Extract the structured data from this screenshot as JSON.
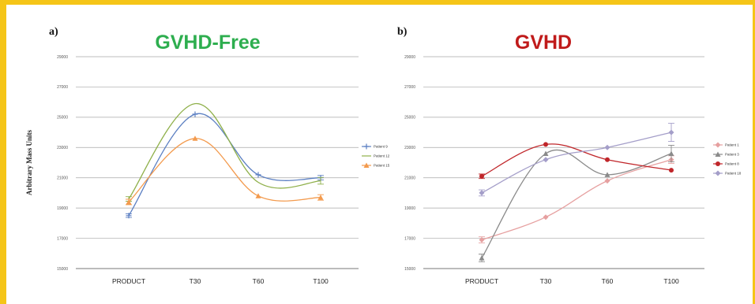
{
  "chart_data": [
    {
      "type": "line",
      "panel": "a)",
      "title": "GVHD-Free",
      "title_color": "#2eae4f",
      "xlabel": "",
      "ylabel": "Arbitrary Mass Units",
      "categories": [
        "PRODUCT",
        "T30",
        "T60",
        "T100"
      ],
      "yticks": [
        15000,
        17000,
        19000,
        21000,
        23000,
        25000,
        27000,
        29000
      ],
      "ytick_labels": [
        "15000",
        "17000",
        "19000",
        "21000",
        "23000",
        "25000",
        "27000",
        "29000"
      ],
      "ylim": [
        15000,
        29000
      ],
      "grid": true,
      "legend_position": "right",
      "series": [
        {
          "name": "Patient 9",
          "color": "#5b7fc2",
          "marker": "plus",
          "values": [
            18500,
            25200,
            21200,
            21000
          ],
          "errors": [
            120,
            0,
            0,
            150
          ]
        },
        {
          "name": "Patient 12",
          "color": "#8fb04a",
          "marker": "none",
          "values": [
            19600,
            25900,
            20700,
            20800
          ],
          "errors": [
            150,
            0,
            0,
            220
          ]
        },
        {
          "name": "Patient 15",
          "color": "#f39a4d",
          "marker": "triangle",
          "values": [
            19400,
            23600,
            19800,
            19700
          ],
          "errors": [
            180,
            0,
            0,
            180
          ]
        }
      ]
    },
    {
      "type": "line",
      "panel": "b)",
      "title": "GVHD",
      "title_color": "#c01b1b",
      "xlabel": "",
      "ylabel": "",
      "categories": [
        "PRODUCT",
        "T30",
        "T60",
        "T100"
      ],
      "yticks": [
        15000,
        17000,
        19000,
        21000,
        23000,
        25000,
        27000,
        29000
      ],
      "ytick_labels": [
        "15000",
        "17000",
        "19000",
        "21000",
        "23000",
        "25000",
        "27000",
        "29000"
      ],
      "ylim": [
        15000,
        29000
      ],
      "grid": true,
      "legend_position": "right",
      "series": [
        {
          "name": "Patient 1",
          "color": "#e6a0a0",
          "marker": "diamond",
          "values": [
            16900,
            18400,
            20800,
            22200
          ],
          "errors": [
            200,
            0,
            0,
            250
          ]
        },
        {
          "name": "Patient 3",
          "color": "#8a8a8a",
          "marker": "triangle",
          "values": [
            15700,
            22600,
            21200,
            22600
          ],
          "errors": [
            250,
            0,
            0,
            550
          ]
        },
        {
          "name": "Patient 8",
          "color": "#c0262a",
          "marker": "circle",
          "values": [
            21100,
            23200,
            22200,
            21500
          ],
          "errors": [
            150,
            0,
            0,
            0
          ]
        },
        {
          "name": "Patient 18",
          "color": "#a49ec9",
          "marker": "diamond",
          "values": [
            20000,
            22200,
            23000,
            24000
          ],
          "errors": [
            200,
            0,
            0,
            600
          ]
        }
      ]
    }
  ]
}
